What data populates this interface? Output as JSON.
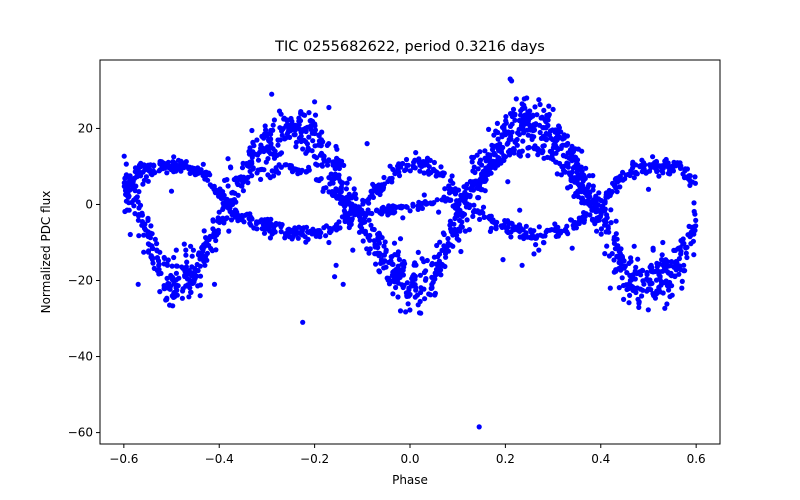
{
  "chart_data": {
    "type": "scatter",
    "title": "TIC 0255682622, period 0.3216 days",
    "xlabel": "Phase",
    "ylabel": "Normalized PDC flux",
    "xlim": [
      -0.65,
      0.65
    ],
    "ylim": [
      -63,
      38
    ],
    "xticks": [
      -0.6,
      -0.4,
      -0.2,
      0.0,
      0.2,
      0.4,
      0.6
    ],
    "xtick_labels": [
      "−0.6",
      "−0.4",
      "−0.2",
      "0.0",
      "0.2",
      "0.4",
      "0.6"
    ],
    "yticks": [
      -60,
      -40,
      -20,
      0,
      20
    ],
    "ytick_labels": [
      "−60",
      "−40",
      "−20",
      "0",
      "20"
    ],
    "grid": false,
    "marker_color": "#0000ff",
    "phase_range": [
      -0.6,
      0.6
    ],
    "series": [
      {
        "description": "main light curve (large amplitude)",
        "curve_knots": [
          [
            -0.6,
            4
          ],
          [
            -0.58,
            3
          ],
          [
            -0.55,
            -9
          ],
          [
            -0.52,
            -18
          ],
          [
            -0.5,
            -21
          ],
          [
            -0.46,
            -20
          ],
          [
            -0.42,
            -10
          ],
          [
            -0.38,
            2
          ],
          [
            -0.33,
            11
          ],
          [
            -0.28,
            17
          ],
          [
            -0.25,
            20
          ],
          [
            -0.2,
            17
          ],
          [
            -0.16,
            8
          ],
          [
            -0.12,
            -1
          ],
          [
            -0.08,
            -10
          ],
          [
            -0.04,
            -17
          ],
          [
            0.0,
            -21
          ],
          [
            0.04,
            -20
          ],
          [
            0.07,
            -14
          ],
          [
            0.1,
            -4
          ],
          [
            0.14,
            6
          ],
          [
            0.18,
            15
          ],
          [
            0.21,
            20
          ],
          [
            0.25,
            22
          ],
          [
            0.29,
            19
          ],
          [
            0.33,
            12
          ],
          [
            0.37,
            4
          ],
          [
            0.4,
            -4
          ],
          [
            0.43,
            -12
          ],
          [
            0.46,
            -19
          ],
          [
            0.5,
            -21
          ],
          [
            0.54,
            -19
          ],
          [
            0.57,
            -13
          ],
          [
            0.6,
            -6
          ]
        ],
        "scatter": 3.2,
        "points": 1400
      },
      {
        "description": "secondary curve (small amplitude, opposite phase)",
        "curve_knots": [
          [
            -0.6,
            5
          ],
          [
            -0.56,
            9
          ],
          [
            -0.52,
            10
          ],
          [
            -0.48,
            10
          ],
          [
            -0.44,
            9
          ],
          [
            -0.4,
            3
          ],
          [
            -0.36,
            -3
          ],
          [
            -0.3,
            -6
          ],
          [
            -0.24,
            -8
          ],
          [
            -0.18,
            -7
          ],
          [
            -0.12,
            -3
          ],
          [
            -0.06,
            5
          ],
          [
            -0.02,
            10
          ],
          [
            0.02,
            11
          ],
          [
            0.06,
            8
          ],
          [
            0.1,
            3
          ],
          [
            0.14,
            -2
          ],
          [
            0.2,
            -6
          ],
          [
            0.26,
            -8
          ],
          [
            0.32,
            -7
          ],
          [
            0.36,
            -4
          ],
          [
            0.4,
            0
          ],
          [
            0.44,
            6
          ],
          [
            0.48,
            9
          ],
          [
            0.52,
            10
          ],
          [
            0.56,
            10
          ],
          [
            0.6,
            5
          ]
        ],
        "scatter": 1.1,
        "points": 700
      },
      {
        "description": "intermediate arc",
        "curve_knots": [
          [
            -0.3,
            8
          ],
          [
            -0.26,
            10
          ],
          [
            -0.22,
            9
          ],
          [
            -0.18,
            5
          ],
          [
            -0.14,
            1
          ],
          [
            -0.1,
            -2
          ],
          [
            0.1,
            1
          ],
          [
            0.14,
            6
          ],
          [
            0.18,
            11
          ],
          [
            0.22,
            14
          ],
          [
            0.26,
            15
          ],
          [
            0.3,
            12
          ],
          [
            0.34,
            7
          ],
          [
            0.38,
            2
          ]
        ],
        "scatter": 0.6,
        "points": 220
      }
    ],
    "outliers": [
      [
        0.145,
        -58.5
      ],
      [
        -0.225,
        -31
      ],
      [
        0.21,
        33
      ],
      [
        0.213,
        32.5
      ],
      [
        -0.29,
        29
      ],
      [
        -0.2,
        27
      ],
      [
        -0.17,
        25.5
      ],
      [
        0.3,
        25
      ],
      [
        -0.09,
        16
      ],
      [
        -0.12,
        -12
      ],
      [
        -0.155,
        -16
      ],
      [
        -0.158,
        -19
      ],
      [
        -0.14,
        -21
      ],
      [
        -0.17,
        -10
      ],
      [
        -0.015,
        -3.5
      ],
      [
        -0.02,
        -9
      ],
      [
        0.03,
        2.5
      ],
      [
        0.05,
        0.5
      ],
      [
        0.06,
        -2
      ],
      [
        0.07,
        -7.5
      ],
      [
        0.095,
        -3.5
      ],
      [
        0.195,
        -14.5
      ],
      [
        0.235,
        -16
      ],
      [
        0.26,
        -13
      ],
      [
        0.27,
        -12
      ],
      [
        0.34,
        -11.5
      ],
      [
        0.355,
        -5
      ],
      [
        0.37,
        3
      ],
      [
        0.33,
        18
      ],
      [
        0.36,
        14
      ],
      [
        -0.5,
        3.5
      ],
      [
        -0.5,
        -19
      ],
      [
        -0.54,
        -14
      ],
      [
        -0.47,
        -12
      ],
      [
        -0.49,
        -12
      ],
      [
        -0.46,
        -11
      ],
      [
        -0.43,
        -16
      ],
      [
        -0.38,
        -7
      ],
      [
        0.5,
        4
      ],
      [
        0.51,
        -12
      ],
      [
        0.53,
        -10
      ],
      [
        0.47,
        -11
      ],
      [
        0.44,
        -12
      ],
      [
        0.31,
        -6
      ],
      [
        0.28,
        -10
      ],
      [
        0.23,
        -1.5
      ],
      [
        0.205,
        6
      ],
      [
        -0.44,
        -24
      ],
      [
        -0.41,
        -21
      ],
      [
        0.42,
        -22
      ],
      [
        0.48,
        -26
      ],
      [
        -0.02,
        -28
      ],
      [
        0.02,
        -28.5
      ],
      [
        0.57,
        -22
      ],
      [
        -0.57,
        -21
      ]
    ]
  }
}
